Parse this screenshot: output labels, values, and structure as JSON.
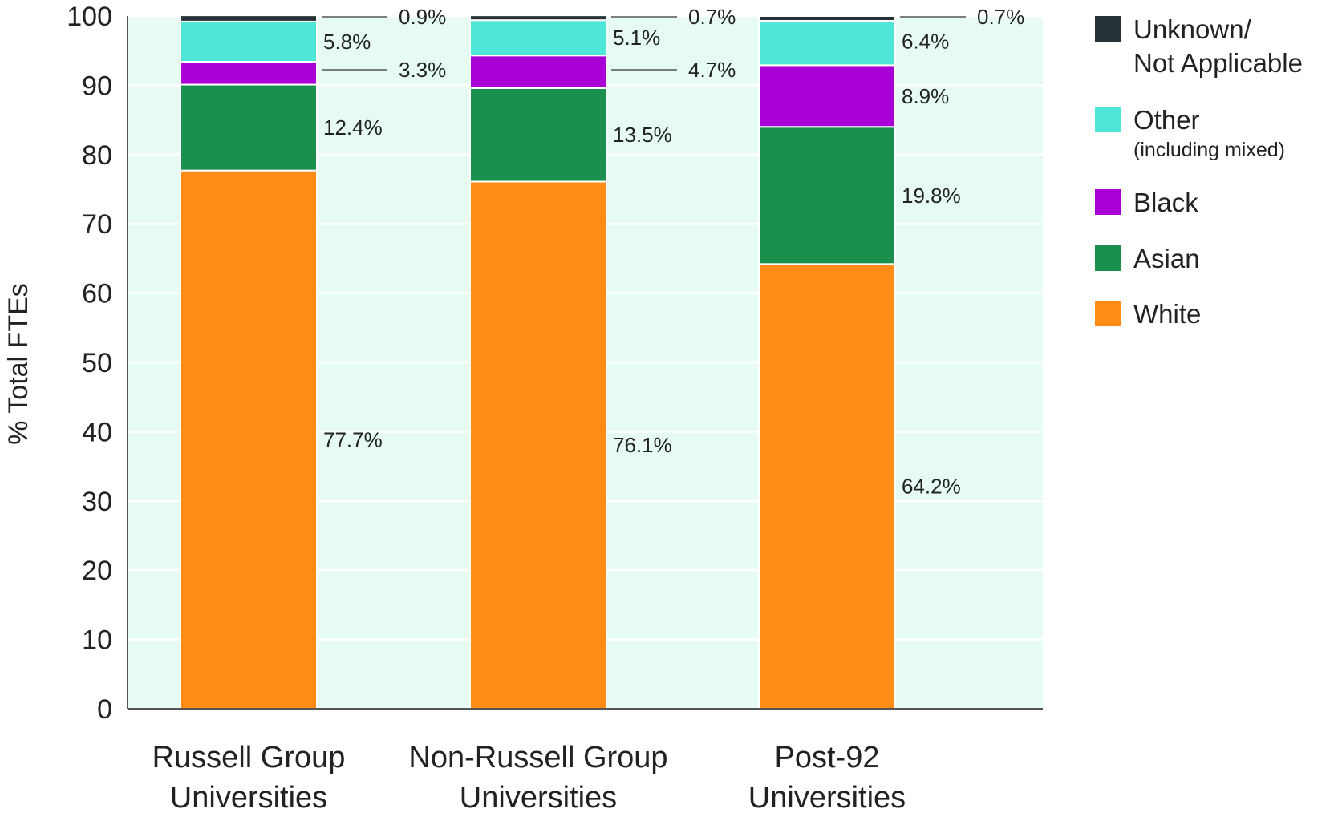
{
  "chart_data": {
    "type": "bar",
    "stacked": true,
    "ylabel": "% Total FTEs",
    "xlabel": "",
    "ylim": [
      0,
      100
    ],
    "yticks": [
      0,
      10,
      20,
      30,
      40,
      50,
      60,
      70,
      80,
      90,
      100
    ],
    "grid": true,
    "legend_position": "right",
    "categories": [
      [
        "Russell Group",
        "Universities"
      ],
      [
        "Non-Russell Group",
        "Universities"
      ],
      [
        "Post-92",
        "Universities"
      ]
    ],
    "series": [
      {
        "name": "White",
        "color": "#ff8c16",
        "values": [
          77.7,
          76.1,
          64.2
        ],
        "labels": [
          "77.7%",
          "76.1%",
          "64.2%"
        ]
      },
      {
        "name": "Asian",
        "color": "#1b8f4d",
        "values": [
          12.4,
          13.5,
          19.8
        ],
        "labels": [
          "12.4%",
          "13.5%",
          "19.8%"
        ]
      },
      {
        "name": "Black",
        "color": "#a800d6",
        "values": [
          3.3,
          4.7,
          8.9
        ],
        "labels": [
          "3.3%",
          "4.7%",
          "8.9%"
        ]
      },
      {
        "name": "Other",
        "subname": "(including mixed)",
        "color": "#4ee6d8",
        "values": [
          5.8,
          5.1,
          6.4
        ],
        "labels": [
          "5.8%",
          "5.1%",
          "6.4%"
        ]
      },
      {
        "name": "Unknown/ Not Applicable",
        "name_lines": [
          "Unknown/",
          "Not Applicable"
        ],
        "color": "#263238",
        "values": [
          0.9,
          0.7,
          0.7
        ],
        "labels": [
          "0.9%",
          "0.7%",
          "0.7%"
        ]
      }
    ],
    "colors": {
      "plot_background": "#e6fbf1",
      "gridline": "#ffffff",
      "axis": "#555555"
    }
  }
}
